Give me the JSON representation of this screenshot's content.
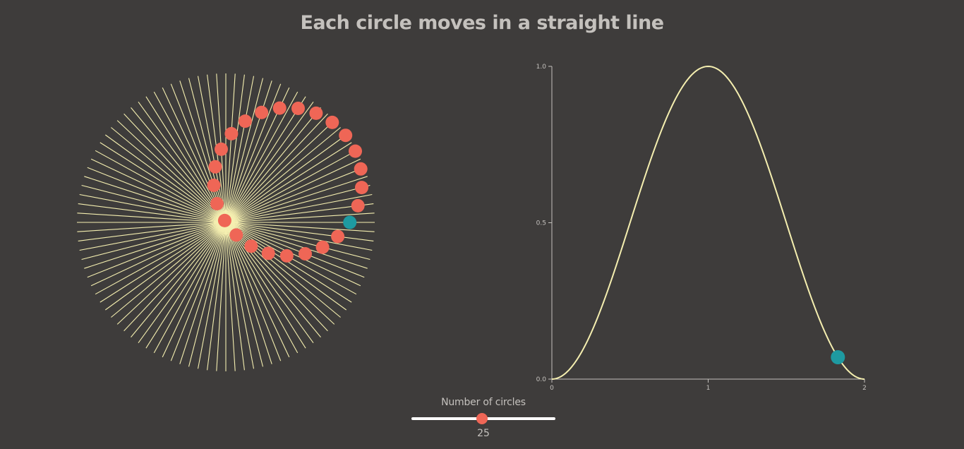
{
  "page": {
    "title": "Each circle moves in a straight line"
  },
  "control": {
    "label": "Number of circles",
    "value": "25",
    "count": 25,
    "min": 1,
    "max": 50
  },
  "colors": {
    "background": "#3e3c3b",
    "line": "#f5efb0",
    "circle": "#ef6656",
    "highlight": "#1e9aa1",
    "axis": "#c4c1bd",
    "slider_track": "#ffffff"
  },
  "chart_data": [
    {
      "type": "radial-lines",
      "line_count": 50,
      "circle_count": 25,
      "circle_color": "#ef6656",
      "highlight_circle_color": "#1e9aa1"
    },
    {
      "type": "line",
      "title": "",
      "xlabel": "",
      "ylabel": "",
      "xlim": [
        0,
        2
      ],
      "ylim": [
        0,
        1
      ],
      "x_ticks": [
        "0",
        "1",
        "2"
      ],
      "y_ticks": [
        "0.0",
        "0.5",
        "1.0"
      ],
      "grid": false,
      "series": [
        {
          "function": "(1 - cos(pi * x)) / 2",
          "x": [
            0,
            0.25,
            0.5,
            0.75,
            1,
            1.25,
            1.5,
            1.75,
            2
          ],
          "y": [
            0,
            0.15,
            0.5,
            0.85,
            1,
            0.85,
            0.5,
            0.15,
            0
          ],
          "color": "#f5efb0"
        }
      ],
      "marker": {
        "x": 1.83,
        "y": 0.07,
        "color": "#1e9aa1"
      }
    }
  ]
}
